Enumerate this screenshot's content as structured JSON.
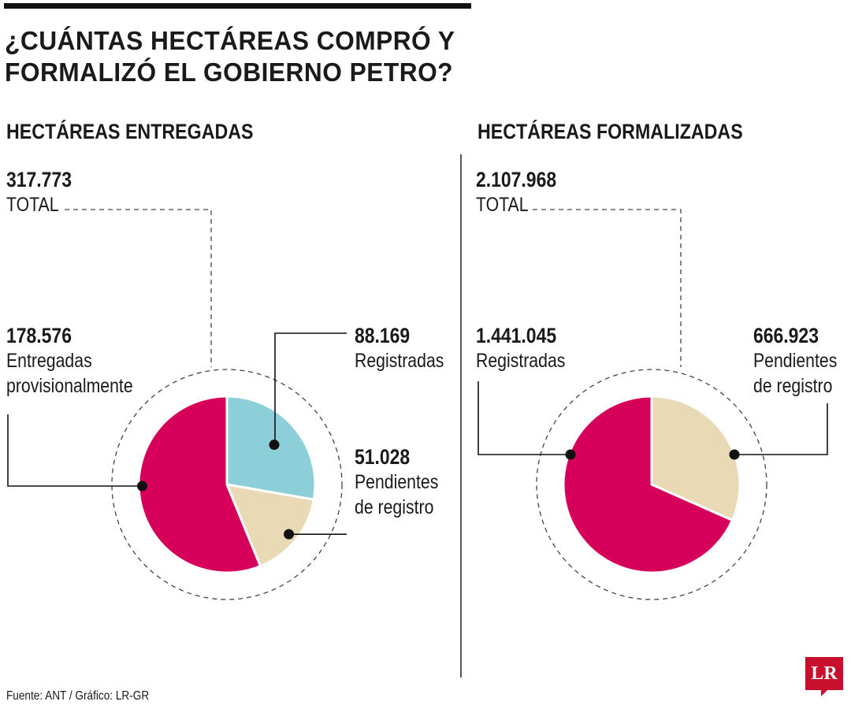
{
  "title_line1": "¿CUÁNTAS HECTÁREAS COMPRÓ Y",
  "title_line2": "FORMALIZÓ EL GOBIERNO PETRO?",
  "footer": "Fuente: ANT / Gráfico: LR-GR",
  "logo_text": "LR",
  "colors": {
    "magenta": "#d6005a",
    "teal": "#8ccfd8",
    "beige": "#e9d9b4",
    "dashed": "#444444",
    "leader": "#111111"
  },
  "chart_data": [
    {
      "type": "pie",
      "title": "HECTÁREAS ENTREGADAS",
      "total": {
        "value": "317.773",
        "label": "TOTAL"
      },
      "slices": [
        {
          "name": "Registradas",
          "value_label": "88.169",
          "value": 88169,
          "color": "#8ccfd8",
          "text_lines": [
            "Registradas"
          ]
        },
        {
          "name": "Pendientes de registro",
          "value_label": "51.028",
          "value": 51028,
          "color": "#e9d9b4",
          "text_lines": [
            "Pendientes",
            "de registro"
          ]
        },
        {
          "name": "Entregadas provisionalmente",
          "value_label": "178.576",
          "value": 178576,
          "color": "#d6005a",
          "text_lines": [
            "Entregadas",
            "provisionalmente"
          ]
        }
      ]
    },
    {
      "type": "pie",
      "title": "HECTÁREAS FORMALIZADAS",
      "total": {
        "value": "2.107.968",
        "label": "TOTAL"
      },
      "slices": [
        {
          "name": "Pendientes de registro",
          "value_label": "666.923",
          "value": 666923,
          "color": "#e9d9b4",
          "text_lines": [
            "Pendientes",
            "de registro"
          ]
        },
        {
          "name": "Registradas",
          "value_label": "1.441.045",
          "value": 1441045,
          "color": "#d6005a",
          "text_lines": [
            "Registradas"
          ]
        }
      ]
    }
  ]
}
